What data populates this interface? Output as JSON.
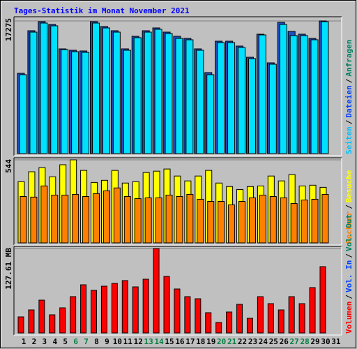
{
  "title": "Tages-Statistik im Monat November 2021",
  "categories": [
    "1",
    "2",
    "3",
    "4",
    "5",
    "6",
    "7",
    "8",
    "9",
    "10",
    "11",
    "12",
    "13",
    "14",
    "15",
    "16",
    "17",
    "18",
    "19",
    "20",
    "21",
    "22",
    "23",
    "24",
    "25",
    "26",
    "27",
    "28",
    "29",
    "30",
    "31"
  ],
  "weekend": [
    5,
    6,
    12,
    13,
    19,
    20,
    26,
    27
  ],
  "weekend_color": "#008040",
  "chart_data": [
    {
      "type": "bar",
      "ylim": [
        0,
        17275
      ],
      "yticks": [
        17275
      ],
      "grid": true,
      "legend": [
        {
          "text": "Seiten",
          "color": "#00c0ff"
        },
        {
          "text": "/",
          "color": "#000000"
        },
        {
          "text": "Dateien",
          "color": "#0040ff"
        },
        {
          "text": "/",
          "color": "#000000"
        },
        {
          "text": "Anfragen",
          "color": "#008060"
        }
      ],
      "series": [
        {
          "color": "#1e4fc0",
          "values": [
            10456,
            16002,
            17184,
            16820,
            13638,
            13456,
            13365,
            17184,
            16547,
            16002,
            13638,
            15275,
            16002,
            16366,
            15820,
            15275,
            15002,
            13638,
            10547,
            14638,
            14638,
            14002,
            12547,
            15547,
            11820,
            17093,
            15911,
            15547,
            15002,
            17275,
            null
          ]
        },
        {
          "color": "#00e0ff",
          "values": [
            10274,
            15820,
            17002,
            16638,
            13547,
            13274,
            13183,
            17002,
            16366,
            15820,
            13456,
            15093,
            15820,
            16184,
            15638,
            15002,
            14820,
            13456,
            10274,
            14456,
            14456,
            13820,
            12365,
            15456,
            11638,
            16820,
            15366,
            15366,
            14820,
            17184,
            null
          ]
        }
      ]
    },
    {
      "type": "bar",
      "ylim": [
        0,
        544
      ],
      "yticks": [
        544
      ],
      "grid": true,
      "legend": [
        {
          "text": "Rechner",
          "color": "#ff8000"
        },
        {
          "text": "/",
          "color": "#000000"
        },
        {
          "text": "Besuche",
          "color": "#ffff00"
        }
      ],
      "series": [
        {
          "color": "#ffff00",
          "values": [
            401,
            466,
            493,
            433,
            512,
            544,
            475,
            396,
            410,
            475,
            392,
            401,
            461,
            470,
            484,
            438,
            406,
            438,
            475,
            392,
            369,
            350,
            369,
            373,
            438,
            406,
            447,
            373,
            378,
            364,
            null
          ]
        },
        {
          "color": "#ff8000",
          "values": [
            304,
            300,
            373,
            313,
            313,
            318,
            304,
            323,
            341,
            360,
            304,
            290,
            295,
            295,
            313,
            304,
            318,
            286,
            272,
            272,
            249,
            272,
            295,
            313,
            304,
            295,
            258,
            281,
            286,
            318,
            null
          ]
        }
      ]
    },
    {
      "type": "bar",
      "ylim": [
        0,
        127.61
      ],
      "yticks": [
        {
          "value": 127.61,
          "label": "127.61 MB"
        }
      ],
      "grid": true,
      "legend": [
        {
          "text": "Volumen",
          "color": "#ff0000"
        },
        {
          "text": "/",
          "color": "#000000"
        },
        {
          "text": "Vol. In",
          "color": "#0040ff"
        },
        {
          "text": "/",
          "color": "#000000"
        },
        {
          "text": "Vol. Out",
          "color": "#008060"
        }
      ],
      "series": [
        {
          "color": "#ff0000",
          "values": [
            24.26,
            34.8,
            49.57,
            27.42,
            37.97,
            54.84,
            72.77,
            64.33,
            70.66,
            74.88,
            79.1,
            69.6,
            81.2,
            127.61,
            85.42,
            66.44,
            54.84,
            51.68,
            30.58,
            15.82,
            31.64,
            43.24,
            22.15,
            54.84,
            44.29,
            34.8,
            54.84,
            44.29,
            68.55,
            100.19,
            null
          ]
        }
      ]
    }
  ]
}
